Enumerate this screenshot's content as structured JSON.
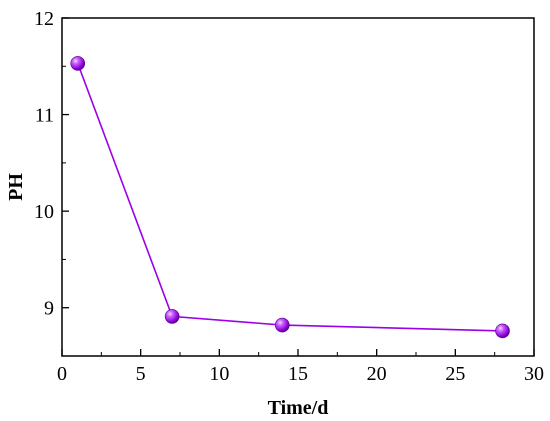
{
  "chart_data": {
    "type": "line",
    "title": "",
    "xlabel": "Time/d",
    "ylabel": "PH",
    "xlim": [
      0,
      30
    ],
    "ylim": [
      8.5,
      12
    ],
    "xticks": [
      0,
      5,
      10,
      15,
      20,
      25,
      30
    ],
    "yticks": [
      9,
      10,
      11,
      12
    ],
    "x_tick_labels": [
      "0",
      "5",
      "10",
      "15",
      "20",
      "25",
      "30"
    ],
    "y_tick_labels": [
      "9",
      "10",
      "11",
      "12"
    ],
    "grid": false,
    "legend": "none",
    "series": [
      {
        "x": [
          1,
          7,
          14,
          28
        ],
        "y": [
          11.53,
          8.91,
          8.82,
          8.76
        ],
        "color": "#9b00e8",
        "marker": "sphere"
      }
    ]
  }
}
